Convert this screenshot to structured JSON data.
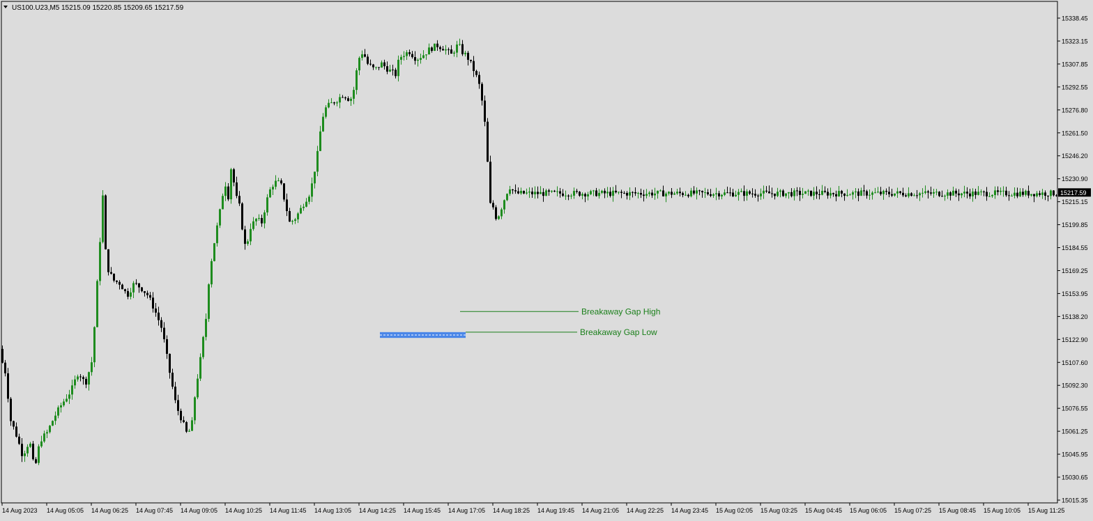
{
  "window": {
    "symbol_label": "US100.U23,M5",
    "ohlc_label": "15215.09 15220.85 15209.65 15217.59"
  },
  "colors": {
    "background": "#dcdcdc",
    "bull": "#1e8c1e",
    "bear": "#000000",
    "axis": "#000000",
    "annotation_line": "#1a7f1a",
    "gap_box": "#4a86e8",
    "price_tag_bg": "#000000",
    "price_tag_text": "#ffffff"
  },
  "chart_data": {
    "type": "candlestick",
    "symbol": "US100.U23",
    "timeframe": "M5",
    "current_price": 15217.59,
    "ylim": [
      15014.0,
      15342.0
    ],
    "y_ticks": [
      "15338.45",
      "15323.15",
      "15307.85",
      "15292.55",
      "15276.80",
      "15261.50",
      "15246.20",
      "15230.90",
      "15215.15",
      "15199.85",
      "15184.55",
      "15169.25",
      "15153.95",
      "15138.20",
      "15122.90",
      "15107.60",
      "15092.30",
      "15076.55",
      "15061.25",
      "15045.95",
      "15030.65",
      "15015.35"
    ],
    "x_ticks": [
      "14 Aug 2023",
      "14 Aug 05:05",
      "14 Aug 06:25",
      "14 Aug 07:45",
      "14 Aug 09:05",
      "14 Aug 10:25",
      "14 Aug 11:45",
      "14 Aug 13:05",
      "14 Aug 14:25",
      "14 Aug 15:45",
      "14 Aug 17:05",
      "14 Aug 18:25",
      "14 Aug 19:45",
      "14 Aug 21:05",
      "14 Aug 22:25",
      "14 Aug 23:45",
      "15 Aug 02:05",
      "15 Aug 03:25",
      "15 Aug 04:45",
      "15 Aug 06:05",
      "15 Aug 07:25",
      "15 Aug 08:45",
      "15 Aug 10:05",
      "15 Aug 11:25"
    ],
    "bar_count": 380,
    "price_path": [
      [
        0,
        15115
      ],
      [
        10,
        15100
      ],
      [
        18,
        15068
      ],
      [
        25,
        15060
      ],
      [
        35,
        15045
      ],
      [
        45,
        15055
      ],
      [
        52,
        15035
      ],
      [
        60,
        15055
      ],
      [
        70,
        15060
      ],
      [
        80,
        15070
      ],
      [
        90,
        15078
      ],
      [
        105,
        15088
      ],
      [
        115,
        15100
      ],
      [
        125,
        15092
      ],
      [
        135,
        15108
      ],
      [
        150,
        15215
      ],
      [
        155,
        15170
      ],
      [
        165,
        15160
      ],
      [
        175,
        15158
      ],
      [
        185,
        15150
      ],
      [
        195,
        15158
      ],
      [
        205,
        15155
      ],
      [
        215,
        15150
      ],
      [
        225,
        15140
      ],
      [
        235,
        15128
      ],
      [
        245,
        15102
      ],
      [
        255,
        15078
      ],
      [
        262,
        15070
      ],
      [
        270,
        15060
      ],
      [
        277,
        15062
      ],
      [
        283,
        15088
      ],
      [
        290,
        15108
      ],
      [
        298,
        15135
      ],
      [
        303,
        15165
      ],
      [
        310,
        15185
      ],
      [
        318,
        15205
      ],
      [
        325,
        15225
      ],
      [
        330,
        15215
      ],
      [
        335,
        15238
      ],
      [
        340,
        15215
      ],
      [
        345,
        15212
      ],
      [
        350,
        15195
      ],
      [
        355,
        15180
      ],
      [
        362,
        15195
      ],
      [
        370,
        15200
      ],
      [
        378,
        15198
      ],
      [
        385,
        15212
      ],
      [
        392,
        15222
      ],
      [
        400,
        15225
      ],
      [
        406,
        15222
      ],
      [
        412,
        15210
      ],
      [
        418,
        15198
      ],
      [
        425,
        15200
      ],
      [
        432,
        15205
      ],
      [
        440,
        15212
      ],
      [
        448,
        15218
      ],
      [
        455,
        15235
      ],
      [
        460,
        15248
      ],
      [
        463,
        15262
      ],
      [
        468,
        15272
      ],
      [
        475,
        15275
      ],
      [
        485,
        15278
      ],
      [
        495,
        15282
      ],
      [
        505,
        15278
      ],
      [
        510,
        15285
      ],
      [
        515,
        15300
      ],
      [
        520,
        15310
      ],
      [
        525,
        15308
      ],
      [
        530,
        15302
      ],
      [
        540,
        15298
      ],
      [
        550,
        15302
      ],
      [
        560,
        15298
      ],
      [
        570,
        15295
      ],
      [
        575,
        15305
      ],
      [
        580,
        15308
      ],
      [
        590,
        15310
      ],
      [
        600,
        15305
      ],
      [
        610,
        15308
      ],
      [
        620,
        15312
      ],
      [
        630,
        15314
      ],
      [
        640,
        15312
      ],
      [
        650,
        15308
      ],
      [
        660,
        15315
      ],
      [
        665,
        15310
      ],
      [
        670,
        15308
      ],
      [
        675,
        15305
      ],
      [
        680,
        15300
      ],
      [
        685,
        15295
      ],
      [
        690,
        15288
      ],
      [
        695,
        15275
      ],
      [
        700,
        15255
      ],
      [
        705,
        15210
      ],
      [
        710,
        15208
      ],
      [
        715,
        15200
      ],
      [
        720,
        15205
      ],
      [
        725,
        15212
      ],
      [
        730,
        15218
      ],
      [
        735,
        15222
      ],
      [
        740,
        15217
      ]
    ],
    "annotations": [
      {
        "label": "Breakaway Gap High",
        "price": 15139.5
      },
      {
        "label": "Breakaway Gap Low",
        "price": 15126.0
      }
    ],
    "gap_zone": {
      "price_low": 15122.2,
      "price_high": 15126.0
    }
  }
}
